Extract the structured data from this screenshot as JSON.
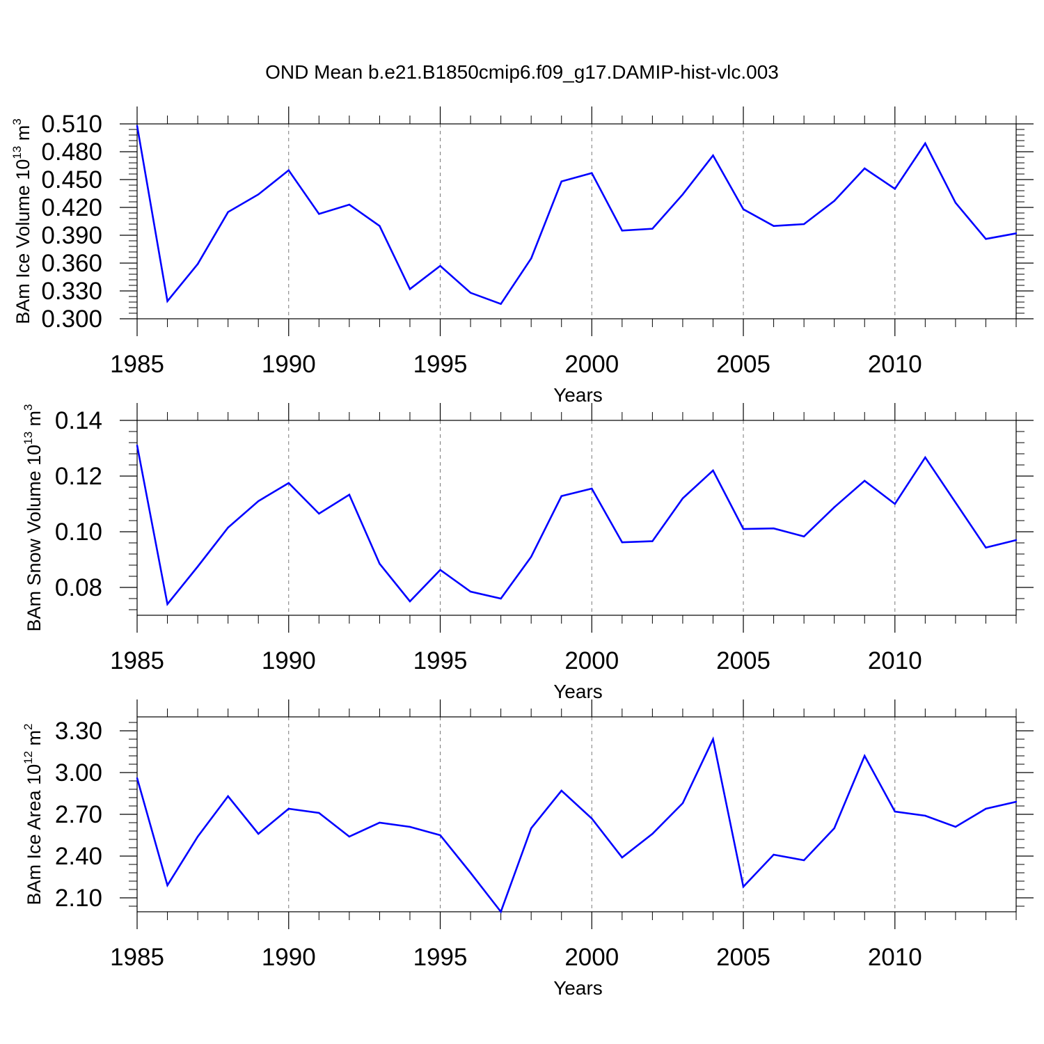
{
  "title": "OND Mean b.e21.B1850cmip6.f09_g17.DAMIP-hist-vlc.003",
  "colors": {
    "line": "#0000ff",
    "axis": "#000000",
    "grid": "#777777",
    "background": "#ffffff"
  },
  "chart_data": [
    {
      "type": "line",
      "title": "OND Mean b.e21.B1850cmip6.f09_g17.DAMIP-hist-vlc.003",
      "xlabel": "Years",
      "ylabel": {
        "prefix": "BAm Ice Volume 10",
        "exponent": "13",
        "unit": " m",
        "unit_exponent": "3"
      },
      "xlim": [
        1985,
        2014
      ],
      "ylim": [
        0.3,
        0.51
      ],
      "x_ticks": [
        1985,
        1990,
        1995,
        2000,
        2005,
        2010
      ],
      "x_tick_labels": [
        "1985",
        "1990",
        "1995",
        "2000",
        "2005",
        "2010"
      ],
      "y_ticks": [
        0.3,
        0.33,
        0.36,
        0.39,
        0.42,
        0.45,
        0.48,
        0.51
      ],
      "y_tick_labels": [
        "0.300",
        "0.330",
        "0.360",
        "0.390",
        "0.420",
        "0.450",
        "0.480",
        "0.510"
      ],
      "grid": "vertical dashed at major x ticks",
      "x": [
        1985,
        1986,
        1987,
        1988,
        1989,
        1990,
        1991,
        1992,
        1993,
        1994,
        1995,
        1996,
        1997,
        1998,
        1999,
        2000,
        2001,
        2002,
        2003,
        2004,
        2005,
        2006,
        2007,
        2008,
        2009,
        2010,
        2011,
        2012,
        2013,
        2014
      ],
      "series": [
        {
          "name": "BAm Ice Volume",
          "values": [
            0.508,
            0.319,
            0.359,
            0.415,
            0.434,
            0.46,
            0.413,
            0.423,
            0.4,
            0.332,
            0.357,
            0.328,
            0.316,
            0.365,
            0.448,
            0.457,
            0.395,
            0.397,
            0.434,
            0.476,
            0.418,
            0.4,
            0.402,
            0.427,
            0.462,
            0.44,
            0.489,
            0.425,
            0.386,
            0.392
          ]
        }
      ]
    },
    {
      "type": "line",
      "xlabel": "Years",
      "ylabel": {
        "prefix": "BAm Snow Volume 10",
        "exponent": "13",
        "unit": " m",
        "unit_exponent": "3"
      },
      "xlim": [
        1985,
        2014
      ],
      "ylim": [
        0.07,
        0.14
      ],
      "x_ticks": [
        1985,
        1990,
        1995,
        2000,
        2005,
        2010
      ],
      "x_tick_labels": [
        "1985",
        "1990",
        "1995",
        "2000",
        "2005",
        "2010"
      ],
      "y_ticks": [
        0.08,
        0.1,
        0.12,
        0.14
      ],
      "y_tick_labels": [
        "0.08",
        "0.10",
        "0.12",
        "0.14"
      ],
      "grid": "vertical dashed at major x ticks",
      "x": [
        1985,
        1986,
        1987,
        1988,
        1989,
        1990,
        1991,
        1992,
        1993,
        1994,
        1995,
        1996,
        1997,
        1998,
        1999,
        2000,
        2001,
        2002,
        2003,
        2004,
        2005,
        2006,
        2007,
        2008,
        2009,
        2010,
        2011,
        2012,
        2013,
        2014
      ],
      "series": [
        {
          "name": "BAm Snow Volume",
          "values": [
            0.131,
            0.074,
            0.0875,
            0.1015,
            0.111,
            0.1175,
            0.1065,
            0.1133,
            0.0885,
            0.075,
            0.0863,
            0.0785,
            0.076,
            0.091,
            0.1128,
            0.1155,
            0.0962,
            0.0966,
            0.112,
            0.122,
            0.101,
            0.1012,
            0.0983,
            0.1088,
            0.1183,
            0.11,
            0.1267,
            0.1105,
            0.0943,
            0.097
          ]
        }
      ]
    },
    {
      "type": "line",
      "xlabel": "Years",
      "ylabel": {
        "prefix": "BAm Ice Area 10",
        "exponent": "12",
        "unit": " m",
        "unit_exponent": "2"
      },
      "xlim": [
        1985,
        2014
      ],
      "ylim": [
        2.0,
        3.4
      ],
      "x_ticks": [
        1985,
        1990,
        1995,
        2000,
        2005,
        2010
      ],
      "x_tick_labels": [
        "1985",
        "1990",
        "1995",
        "2000",
        "2005",
        "2010"
      ],
      "y_ticks": [
        2.1,
        2.4,
        2.7,
        3.0,
        3.3
      ],
      "y_tick_labels": [
        "2.10",
        "2.40",
        "2.70",
        "3.00",
        "3.30"
      ],
      "grid": "vertical dashed at major x ticks",
      "x": [
        1985,
        1986,
        1987,
        1988,
        1989,
        1990,
        1991,
        1992,
        1993,
        1994,
        1995,
        1996,
        1997,
        1998,
        1999,
        2000,
        2001,
        2002,
        2003,
        2004,
        2005,
        2006,
        2007,
        2008,
        2009,
        2010,
        2011,
        2012,
        2013,
        2014
      ],
      "series": [
        {
          "name": "BAm Ice Area",
          "values": [
            2.96,
            2.19,
            2.54,
            2.83,
            2.56,
            2.74,
            2.71,
            2.54,
            2.64,
            2.61,
            2.55,
            2.28,
            2.0,
            2.6,
            2.87,
            2.67,
            2.39,
            2.56,
            2.78,
            3.24,
            2.18,
            2.41,
            2.37,
            2.6,
            3.12,
            2.72,
            2.69,
            2.61,
            2.74,
            2.79
          ]
        }
      ]
    }
  ]
}
